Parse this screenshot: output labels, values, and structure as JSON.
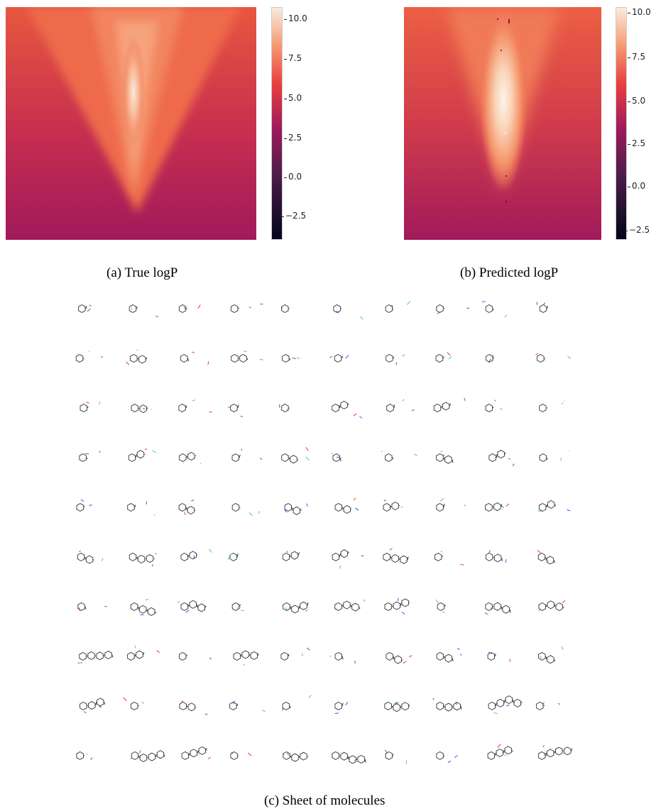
{
  "figure": {
    "panel_a": {
      "caption": "(a) True logP",
      "colorbar_ticks": [
        "10.0",
        "7.5",
        "5.0",
        "2.5",
        "0.0",
        "−2.5"
      ]
    },
    "panel_b": {
      "caption": "(b) Predicted logP",
      "colorbar_ticks": [
        "10.0",
        "7.5",
        "5.0",
        "2.5",
        "0.0",
        "−2.5"
      ]
    },
    "panel_c": {
      "caption": "(c) Sheet of molecules",
      "rows": 10,
      "cols": 10
    }
  },
  "colors": {
    "cmap": [
      "#03051a",
      "#4c1d4b",
      "#a11a5b",
      "#e83f3f",
      "#f69c73",
      "#faebdd"
    ],
    "bond": "#333333",
    "nitrogen": "#3a3af0",
    "oxygen": "#e02020",
    "halogen": "#33cc66"
  }
}
